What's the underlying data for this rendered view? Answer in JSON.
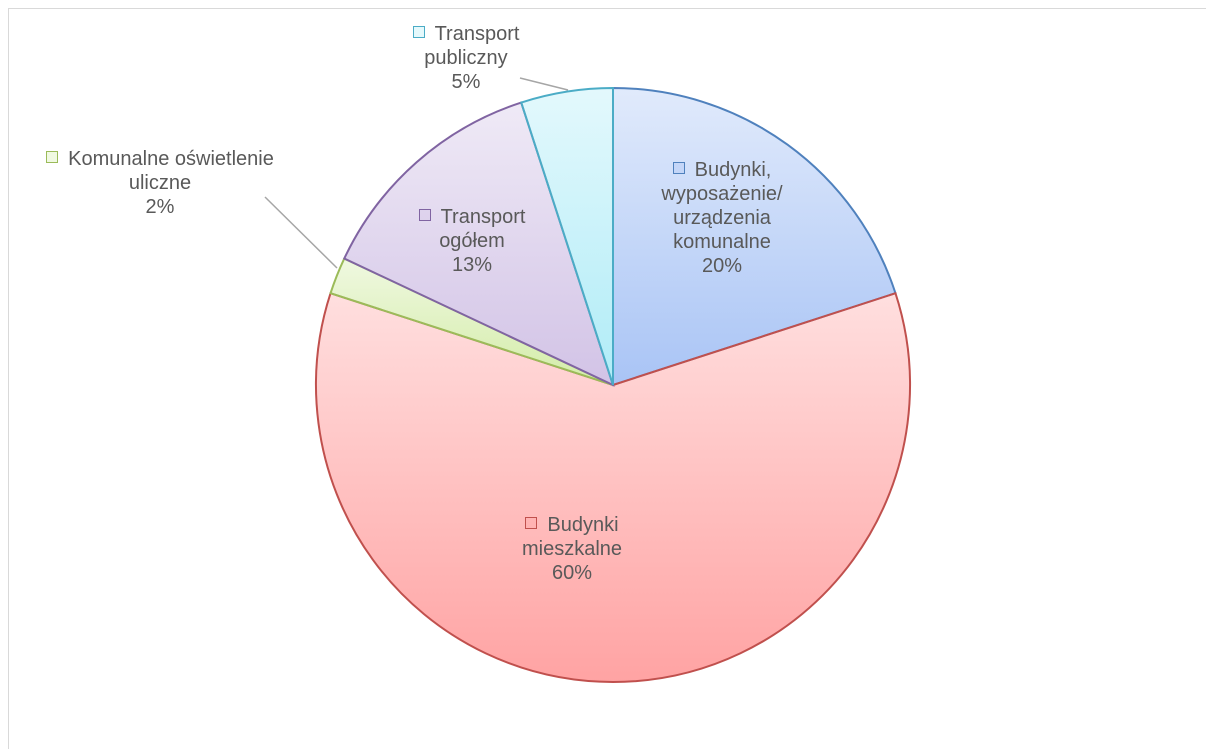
{
  "chart_data": {
    "type": "pie",
    "categories": [
      "Budynki, wyposażenie/ urządzenia komunalne",
      "Budynki mieszkalne",
      "Komunalne oświetlenie uliczne",
      "Transport ogółem",
      "Transport publiczny"
    ],
    "values": [
      20,
      60,
      2,
      13,
      5
    ],
    "value_labels": [
      "20%",
      "60%",
      "2%",
      "13%",
      "5%"
    ],
    "colors": [
      "#a9c4f5",
      "#ffa3a3",
      "#d3eca8",
      "#d2c3e6",
      "#b0ecf7"
    ],
    "edge_colors": [
      "#4f81bd",
      "#c0504d",
      "#9bbb59",
      "#8064a2",
      "#4bacc6"
    ]
  }
}
